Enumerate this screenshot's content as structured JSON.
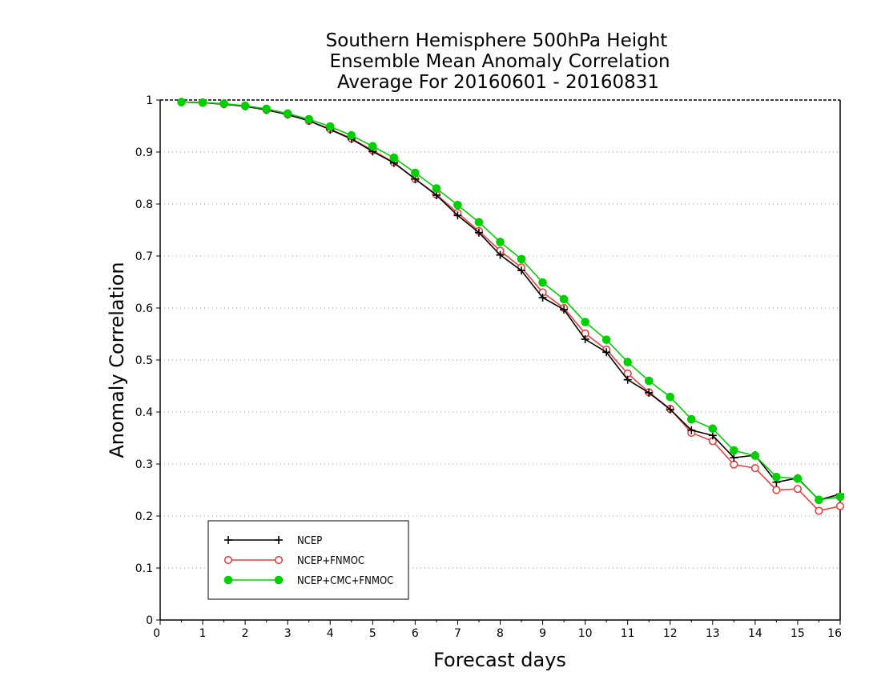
{
  "chart_data": {
    "type": "line",
    "title": [
      "Southern Hemisphere 500hPa Height",
      "Ensemble Mean Anomaly Correlation",
      "Average For 20160601 - 20160831"
    ],
    "xlabel": "Forecast days",
    "ylabel": "Anomaly Correlation",
    "xlim": [
      0,
      16
    ],
    "ylim": [
      0,
      1
    ],
    "xticks": [
      "0",
      "1",
      "2",
      "3",
      "4",
      "5",
      "6",
      "7",
      "8",
      "9",
      "10",
      "11",
      "12",
      "13",
      "14",
      "15",
      "16"
    ],
    "yticks": [
      "0",
      "0.1",
      "0.2",
      "0.3",
      "0.4",
      "0.5",
      "0.6",
      "0.7",
      "0.8",
      "0.9",
      "1"
    ],
    "grid": "horizontal dotted",
    "legend_position": "bottom-left",
    "x": [
      0.5,
      1,
      1.5,
      2,
      2.5,
      3,
      3.5,
      4,
      4.5,
      5,
      5.5,
      6,
      6.5,
      7,
      7.5,
      8,
      8.5,
      9,
      9.5,
      10,
      10.5,
      11,
      11.5,
      12,
      12.5,
      13,
      13.5,
      14,
      14.5,
      15,
      15.5,
      16
    ],
    "series": [
      {
        "name": "NCEP",
        "color": "#000000",
        "marker": "plus",
        "values": [
          0.996,
          0.995,
          0.992,
          0.988,
          0.981,
          0.972,
          0.96,
          0.943,
          0.925,
          0.901,
          0.879,
          0.848,
          0.817,
          0.778,
          0.745,
          0.702,
          0.672,
          0.62,
          0.597,
          0.54,
          0.515,
          0.462,
          0.437,
          0.405,
          0.365,
          0.355,
          0.312,
          0.317,
          0.265,
          0.273,
          0.231,
          0.242
        ]
      },
      {
        "name": "NCEP+FNMOC",
        "color": "#e84040",
        "marker": "open-circle",
        "values": [
          0.996,
          0.995,
          0.992,
          0.988,
          0.981,
          0.972,
          0.96,
          0.944,
          0.926,
          0.903,
          0.88,
          0.848,
          0.818,
          0.783,
          0.748,
          0.71,
          0.678,
          0.63,
          0.6,
          0.551,
          0.52,
          0.474,
          0.438,
          0.406,
          0.36,
          0.344,
          0.299,
          0.292,
          0.25,
          0.252,
          0.21,
          0.219
        ]
      },
      {
        "name": "NCEP+CMC+FNMOC",
        "color": "#00d000",
        "marker": "filled-circle",
        "values": [
          0.996,
          0.995,
          0.993,
          0.989,
          0.983,
          0.974,
          0.963,
          0.949,
          0.932,
          0.911,
          0.889,
          0.86,
          0.83,
          0.798,
          0.765,
          0.727,
          0.694,
          0.649,
          0.617,
          0.573,
          0.539,
          0.496,
          0.46,
          0.429,
          0.386,
          0.368,
          0.326,
          0.316,
          0.275,
          0.272,
          0.231,
          0.237
        ]
      }
    ]
  }
}
